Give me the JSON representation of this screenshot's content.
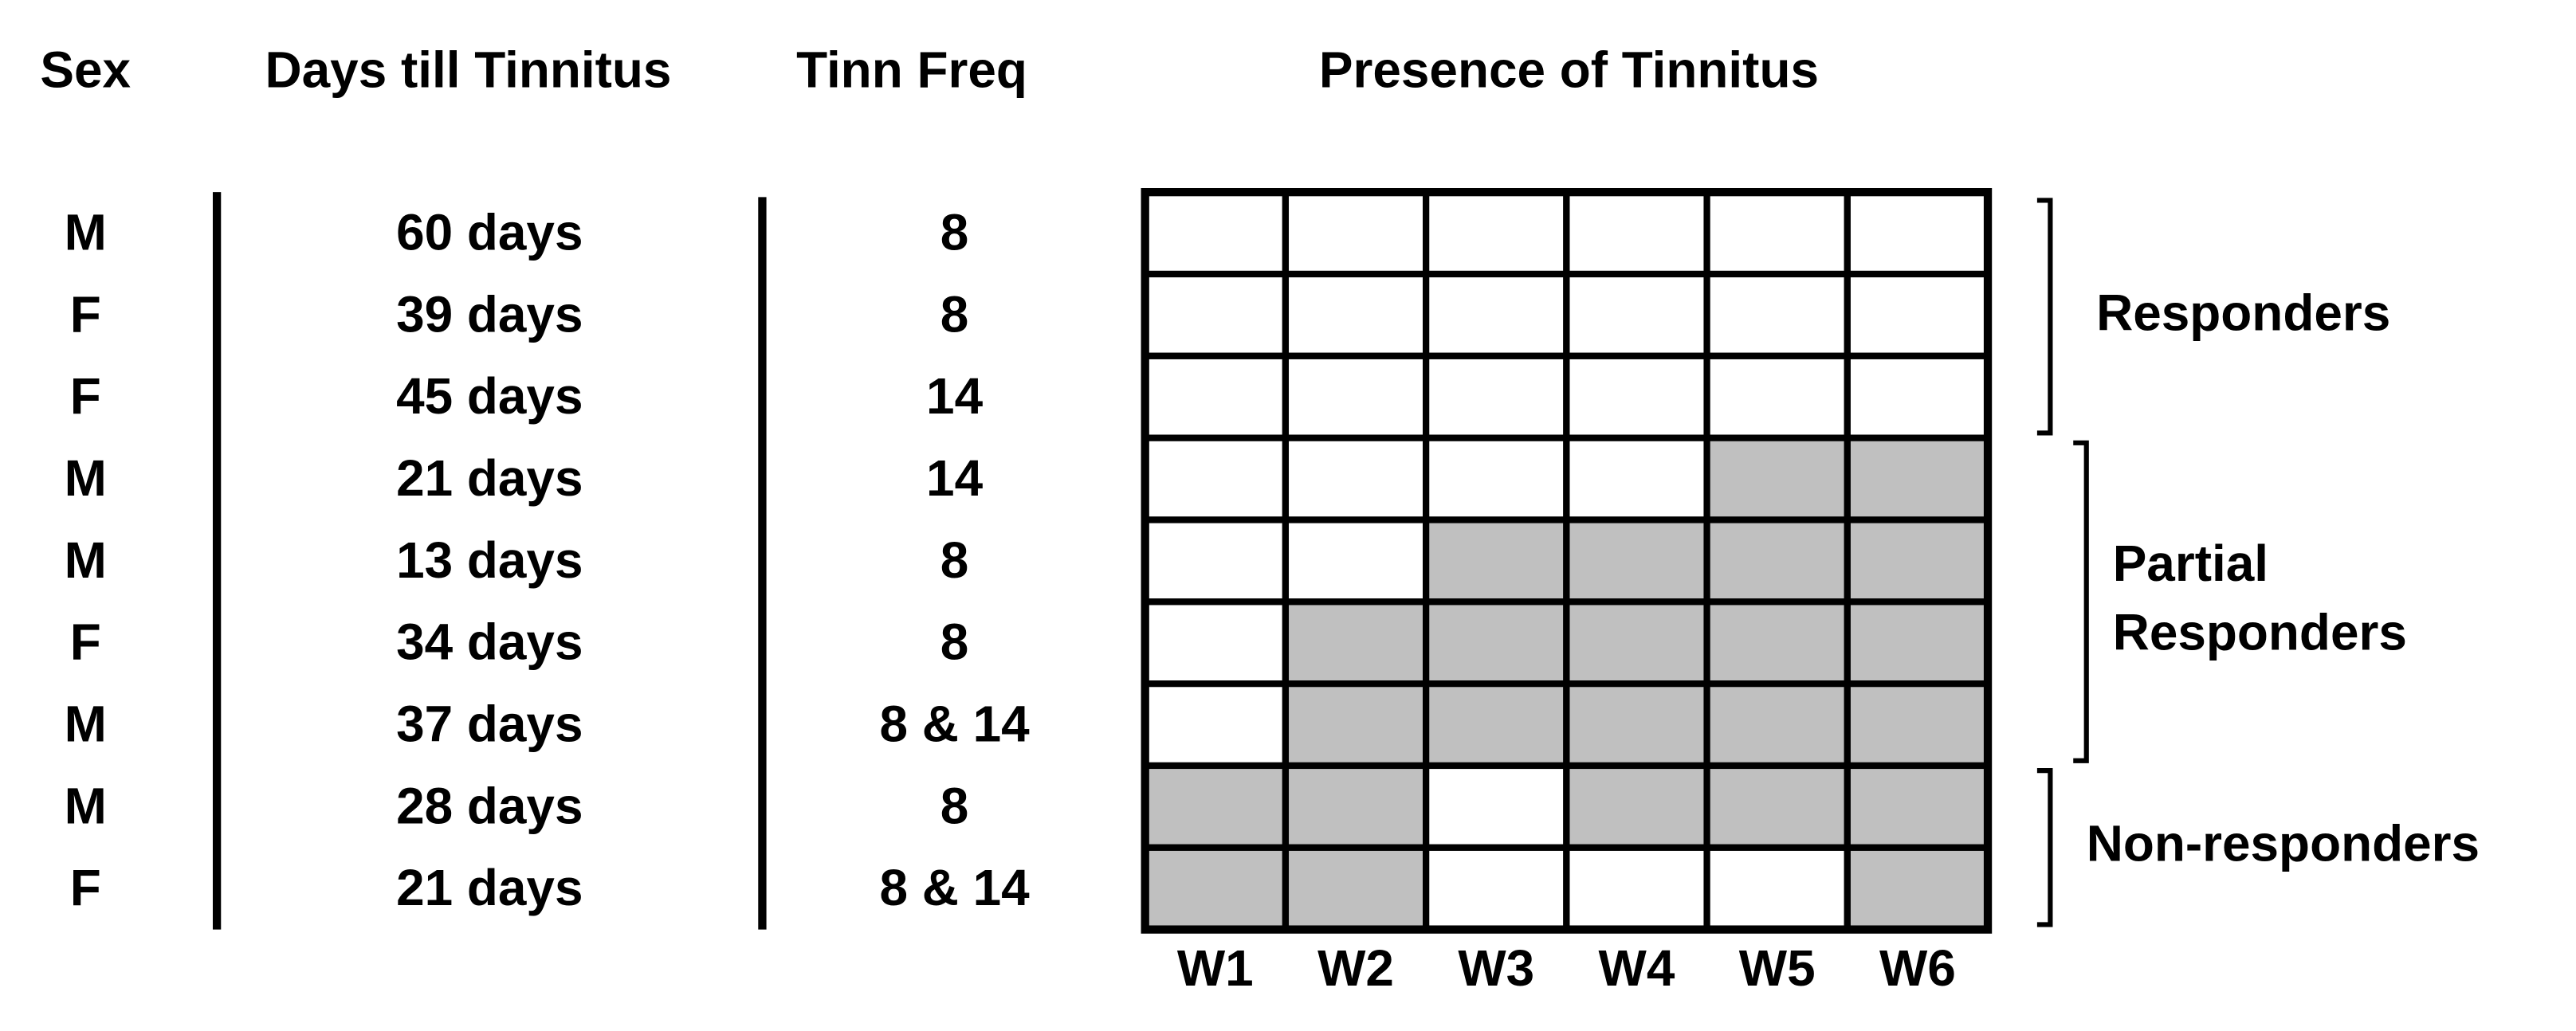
{
  "headers": {
    "sex": "Sex",
    "days": "Days till Tinnitus",
    "freq": "Tinn Freq",
    "presence": "Presence of Tinnitus"
  },
  "rows": [
    {
      "sex": "M",
      "days": "60 days",
      "freq": "8",
      "presence": [
        0,
        0,
        0,
        0,
        0,
        0
      ]
    },
    {
      "sex": "F",
      "days": "39 days",
      "freq": "8",
      "presence": [
        0,
        0,
        0,
        0,
        0,
        0
      ]
    },
    {
      "sex": "F",
      "days": "45 days",
      "freq": "14",
      "presence": [
        0,
        0,
        0,
        0,
        0,
        0
      ]
    },
    {
      "sex": "M",
      "days": "21 days",
      "freq": "14",
      "presence": [
        0,
        0,
        0,
        0,
        1,
        1
      ]
    },
    {
      "sex": "M",
      "days": "13 days",
      "freq": "8",
      "presence": [
        0,
        0,
        1,
        1,
        1,
        1
      ]
    },
    {
      "sex": "F",
      "days": "34 days",
      "freq": "8",
      "presence": [
        0,
        1,
        1,
        1,
        1,
        1
      ]
    },
    {
      "sex": "M",
      "days": "37 days",
      "freq": "8 & 14",
      "presence": [
        0,
        1,
        1,
        1,
        1,
        1
      ]
    },
    {
      "sex": "M",
      "days": "28 days",
      "freq": "8",
      "presence": [
        1,
        1,
        0,
        1,
        1,
        1
      ]
    },
    {
      "sex": "F",
      "days": "21 days",
      "freq": "8 & 14",
      "presence": [
        1,
        1,
        0,
        0,
        0,
        1
      ]
    }
  ],
  "weeks": [
    "W1",
    "W2",
    "W3",
    "W4",
    "W5",
    "W6"
  ],
  "groups": [
    {
      "label": [
        "Responders"
      ],
      "first_row": 0,
      "last_row": 2
    },
    {
      "label": [
        "Partial",
        "Responders"
      ],
      "first_row": 3,
      "last_row": 6
    },
    {
      "label": [
        "Non-responders"
      ],
      "first_row": 7,
      "last_row": 8
    }
  ]
}
